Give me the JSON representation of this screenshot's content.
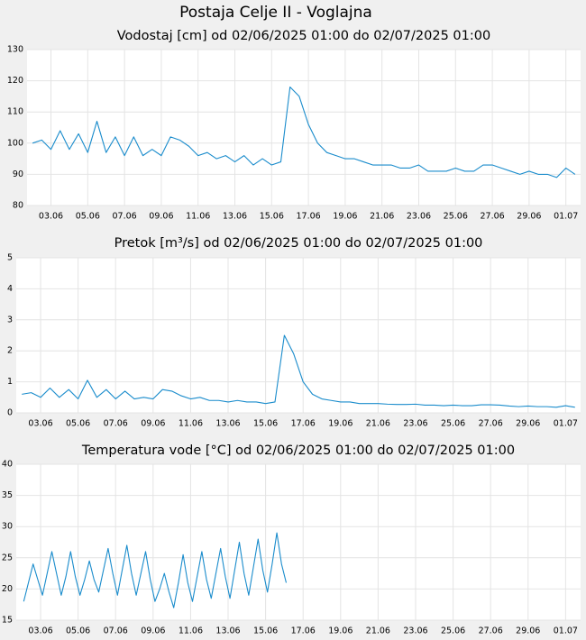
{
  "title": "Postaja Celje II - Voglajna",
  "chart_data": [
    {
      "type": "line",
      "title": "Vodostaj [cm] od 02/06/2025 01:00 do 02/07/2025 01:00",
      "x": [
        2,
        2.5,
        3,
        3.5,
        4,
        4.5,
        5,
        5.5,
        6,
        6.5,
        7,
        7.5,
        8,
        8.5,
        9,
        9.5,
        10,
        10.5,
        11,
        11.5,
        12,
        12.5,
        13,
        13.5,
        14,
        14.5,
        15,
        15.5,
        16,
        16.5,
        17,
        17.5,
        18,
        18.5,
        19,
        19.5,
        20,
        20.5,
        21,
        21.5,
        22,
        22.5,
        23,
        23.5,
        24,
        24.5,
        25,
        25.5,
        26,
        26.5,
        27,
        27.5,
        28,
        28.5,
        29,
        29.5,
        30,
        30.5,
        31,
        31.5
      ],
      "values": [
        100,
        101,
        98,
        104,
        98,
        103,
        97,
        107,
        97,
        102,
        96,
        102,
        96,
        98,
        96,
        102,
        101,
        99,
        96,
        97,
        95,
        96,
        94,
        96,
        93,
        95,
        93,
        94,
        118,
        115,
        106,
        100,
        97,
        96,
        95,
        95,
        94,
        93,
        93,
        93,
        92,
        92,
        93,
        91,
        91,
        91,
        92,
        91,
        91,
        93,
        93,
        92,
        91,
        90,
        91,
        90,
        90,
        89,
        92,
        90
      ],
      "color": "#1a8ccc",
      "xlim": [
        1.7,
        31.8
      ],
      "xticks": [
        {
          "value": 3,
          "label": "03.06"
        },
        {
          "value": 5,
          "label": "05.06"
        },
        {
          "value": 7,
          "label": "07.06"
        },
        {
          "value": 9,
          "label": "09.06"
        },
        {
          "value": 11,
          "label": "11.06"
        },
        {
          "value": 13,
          "label": "13.06"
        },
        {
          "value": 15,
          "label": "15.06"
        },
        {
          "value": 17,
          "label": "17.06"
        },
        {
          "value": 19,
          "label": "19.06"
        },
        {
          "value": 21,
          "label": "21.06"
        },
        {
          "value": 23,
          "label": "23.06"
        },
        {
          "value": 25,
          "label": "25.06"
        },
        {
          "value": 27,
          "label": "27.06"
        },
        {
          "value": 29,
          "label": "29.06"
        },
        {
          "value": 31,
          "label": "01.07"
        }
      ],
      "ylim": [
        80,
        130
      ],
      "yticks": [
        80,
        90,
        100,
        110,
        120,
        130
      ],
      "grid": true
    },
    {
      "type": "line",
      "title": "Pretok [m³/s] od 02/06/2025 01:00 do 02/07/2025 01:00",
      "x": [
        2,
        2.5,
        3,
        3.5,
        4,
        4.5,
        5,
        5.5,
        6,
        6.5,
        7,
        7.5,
        8,
        8.5,
        9,
        9.5,
        10,
        10.5,
        11,
        11.5,
        12,
        12.5,
        13,
        13.5,
        14,
        14.5,
        15,
        15.5,
        16,
        16.5,
        17,
        17.5,
        18,
        18.5,
        19,
        19.5,
        20,
        20.5,
        21,
        21.5,
        22,
        22.5,
        23,
        23.5,
        24,
        24.5,
        25,
        25.5,
        26,
        26.5,
        27,
        27.5,
        28,
        28.5,
        29,
        29.5,
        30,
        30.5,
        31,
        31.5
      ],
      "values": [
        0.6,
        0.65,
        0.5,
        0.8,
        0.5,
        0.75,
        0.45,
        1.05,
        0.5,
        0.75,
        0.45,
        0.7,
        0.45,
        0.5,
        0.45,
        0.75,
        0.7,
        0.55,
        0.45,
        0.5,
        0.4,
        0.4,
        0.35,
        0.4,
        0.35,
        0.35,
        0.3,
        0.35,
        2.5,
        1.9,
        1.0,
        0.6,
        0.45,
        0.4,
        0.35,
        0.35,
        0.3,
        0.3,
        0.3,
        0.28,
        0.27,
        0.27,
        0.28,
        0.25,
        0.25,
        0.23,
        0.25,
        0.23,
        0.23,
        0.26,
        0.26,
        0.25,
        0.22,
        0.2,
        0.22,
        0.2,
        0.2,
        0.18,
        0.23,
        0.18
      ],
      "color": "#1a8ccc",
      "xlim": [
        1.7,
        31.8
      ],
      "xticks": [
        {
          "value": 3,
          "label": "03.06"
        },
        {
          "value": 5,
          "label": "05.06"
        },
        {
          "value": 7,
          "label": "07.06"
        },
        {
          "value": 9,
          "label": "09.06"
        },
        {
          "value": 11,
          "label": "11.06"
        },
        {
          "value": 13,
          "label": "13.06"
        },
        {
          "value": 15,
          "label": "15.06"
        },
        {
          "value": 17,
          "label": "17.06"
        },
        {
          "value": 19,
          "label": "19.06"
        },
        {
          "value": 21,
          "label": "21.06"
        },
        {
          "value": 23,
          "label": "23.06"
        },
        {
          "value": 25,
          "label": "25.06"
        },
        {
          "value": 27,
          "label": "27.06"
        },
        {
          "value": 29,
          "label": "29.06"
        },
        {
          "value": 31,
          "label": "01.07"
        }
      ],
      "ylim": [
        0,
        5
      ],
      "yticks": [
        0,
        1,
        2,
        3,
        4,
        5
      ],
      "grid": true
    },
    {
      "type": "line",
      "title": "Temperatura vode [°C] od 02/06/2025 01:00 do 02/07/2025 01:00",
      "x": [
        2.1,
        2.35,
        2.6,
        2.85,
        3.1,
        3.35,
        3.6,
        3.85,
        4.1,
        4.35,
        4.6,
        4.85,
        5.1,
        5.35,
        5.6,
        5.85,
        6.1,
        6.35,
        6.6,
        6.85,
        7.1,
        7.35,
        7.6,
        7.85,
        8.1,
        8.35,
        8.6,
        8.85,
        9.1,
        9.35,
        9.6,
        9.85,
        10.1,
        10.35,
        10.6,
        10.85,
        11.1,
        11.35,
        11.6,
        11.85,
        12.1,
        12.35,
        12.6,
        12.85,
        13.1,
        13.35,
        13.6,
        13.85,
        14.1,
        14.35,
        14.6,
        14.85,
        15.1,
        15.35,
        15.6,
        15.85,
        16.1
      ],
      "values": [
        18,
        21,
        24,
        21.5,
        19,
        22.5,
        26,
        22.5,
        19,
        22,
        26,
        22,
        19,
        21.5,
        24.5,
        21.5,
        19.5,
        23,
        26.5,
        22.5,
        19,
        23,
        27,
        22.5,
        19,
        22.5,
        26,
        21.5,
        18,
        20,
        22.5,
        19.5,
        17,
        21,
        25.5,
        21,
        18,
        22,
        26,
        21.5,
        18.5,
        22.5,
        26.5,
        22,
        18.5,
        23,
        27.5,
        22.5,
        19,
        23.5,
        28,
        23,
        19.5,
        24,
        29,
        24,
        21
      ],
      "color": "#1a8ccc",
      "xlim": [
        1.7,
        31.8
      ],
      "xticks": [
        {
          "value": 3,
          "label": "03.06"
        },
        {
          "value": 5,
          "label": "05.06"
        },
        {
          "value": 7,
          "label": "07.06"
        },
        {
          "value": 9,
          "label": "09.06"
        },
        {
          "value": 11,
          "label": "11.06"
        },
        {
          "value": 13,
          "label": "13.06"
        },
        {
          "value": 15,
          "label": "15.06"
        },
        {
          "value": 17,
          "label": "17.06"
        },
        {
          "value": 19,
          "label": "19.06"
        },
        {
          "value": 21,
          "label": "21.06"
        },
        {
          "value": 23,
          "label": "23.06"
        },
        {
          "value": 25,
          "label": "25.06"
        },
        {
          "value": 27,
          "label": "27.06"
        },
        {
          "value": 29,
          "label": "29.06"
        },
        {
          "value": 31,
          "label": "01.07"
        }
      ],
      "ylim": [
        15,
        40
      ],
      "yticks": [
        15,
        20,
        25,
        30,
        35,
        40
      ],
      "grid": true
    }
  ]
}
